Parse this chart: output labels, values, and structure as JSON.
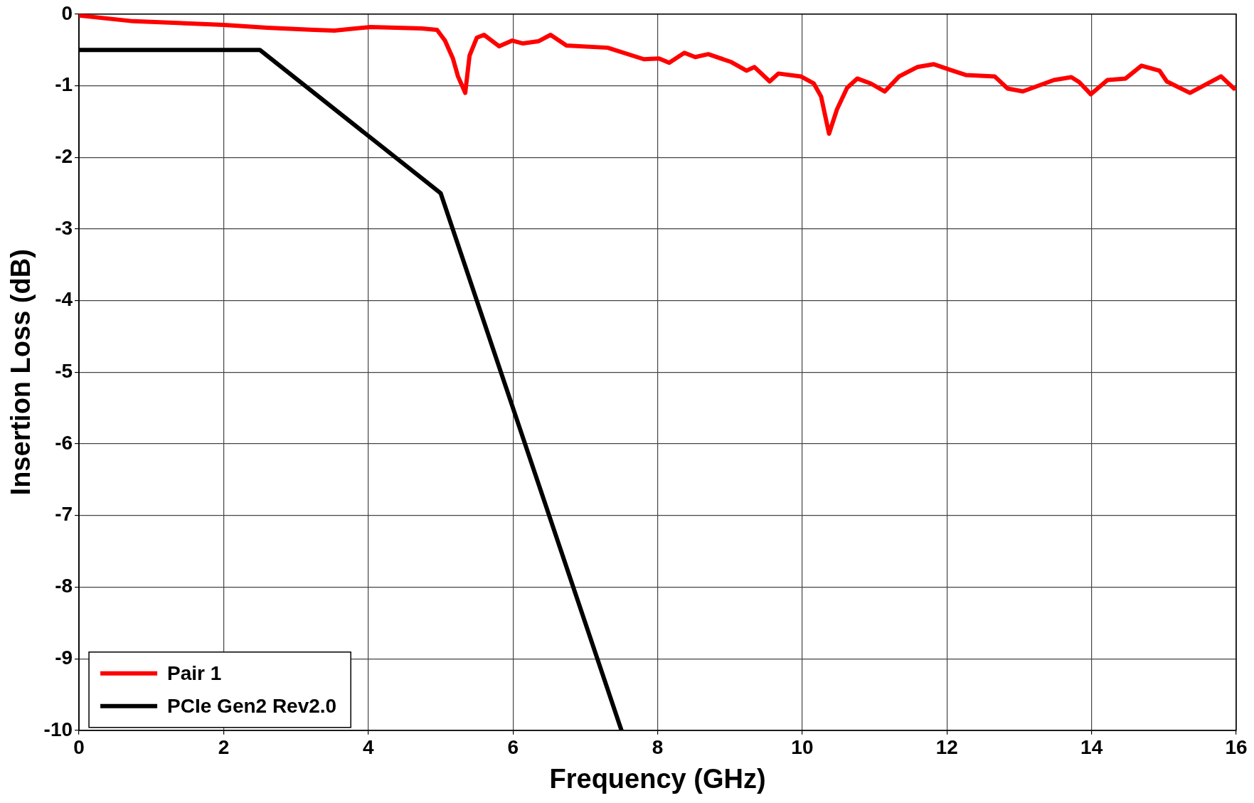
{
  "chart_data": {
    "type": "line",
    "xlabel": "Frequency (GHz)",
    "ylabel": "Insertion Loss (dB)",
    "xlim": [
      0,
      16
    ],
    "xticks": [
      0,
      2,
      4,
      6,
      8,
      10,
      12,
      14,
      16
    ],
    "ylim": [
      -10,
      0
    ],
    "yticks": [
      -10,
      -9,
      -8,
      -7,
      -6,
      -5,
      -4,
      -3,
      -2,
      -1,
      0
    ],
    "grid": true,
    "legend": "bottom left",
    "marker": "none",
    "line_style": "solid",
    "series": [
      {
        "name": "Pair 1",
        "color": "#ff0000",
        "x": [
          0,
          0.75,
          2.0,
          2.6,
          3.25,
          3.53,
          4.03,
          4.74,
          4.95,
          5.06,
          5.17,
          5.24,
          5.34,
          5.4,
          5.5,
          5.6,
          5.81,
          5.99,
          6.14,
          6.35,
          6.52,
          6.74,
          7.31,
          7.81,
          8.02,
          8.16,
          8.37,
          8.52,
          8.7,
          9.02,
          9.23,
          9.34,
          9.55,
          9.67,
          9.98,
          10.16,
          10.26,
          10.37,
          10.48,
          10.62,
          10.76,
          10.95,
          11.14,
          11.34,
          11.59,
          11.82,
          12.05,
          12.26,
          12.66,
          12.84,
          13.05,
          13.48,
          13.72,
          13.83,
          13.99,
          14.22,
          14.47,
          14.69,
          14.94,
          15.04,
          15.36,
          15.79,
          15.97
        ],
        "values": [
          -0.02,
          -0.1,
          -0.15,
          -0.19,
          -0.22,
          -0.23,
          -0.18,
          -0.2,
          -0.22,
          -0.37,
          -0.62,
          -0.87,
          -1.1,
          -0.58,
          -0.33,
          -0.29,
          -0.45,
          -0.37,
          -0.41,
          -0.38,
          -0.29,
          -0.44,
          -0.47,
          -0.63,
          -0.62,
          -0.68,
          -0.54,
          -0.6,
          -0.56,
          -0.67,
          -0.79,
          -0.74,
          -0.94,
          -0.83,
          -0.87,
          -0.97,
          -1.15,
          -1.67,
          -1.33,
          -1.03,
          -0.9,
          -0.97,
          -1.08,
          -0.87,
          -0.74,
          -0.7,
          -0.78,
          -0.85,
          -0.87,
          -1.04,
          -1.08,
          -0.92,
          -0.88,
          -0.95,
          -1.12,
          -0.92,
          -0.9,
          -0.72,
          -0.79,
          -0.94,
          -1.1,
          -0.87,
          -1.04
        ]
      },
      {
        "name": "PCIe Gen2 Rev2.0",
        "color": "#000000",
        "x": [
          0,
          2.5,
          5,
          7.5
        ],
        "values": [
          -0.5,
          -0.5,
          -2.5,
          -10
        ]
      }
    ]
  }
}
